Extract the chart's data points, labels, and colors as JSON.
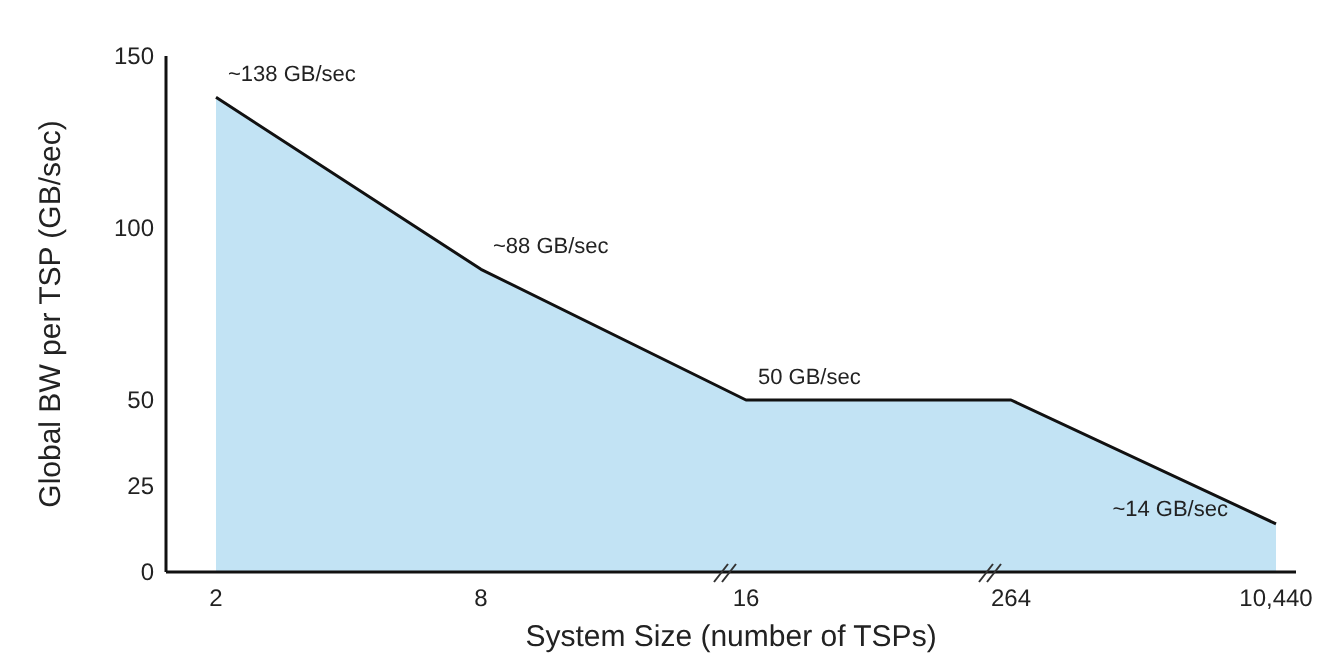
{
  "chart_data": {
    "type": "area",
    "xlabel": "System Size (number of TSPs)",
    "ylabel": "Global BW per TSP (GB/sec)",
    "categories": [
      "2",
      "8",
      "16",
      "264",
      "10,440"
    ],
    "values": [
      138,
      88,
      50,
      50,
      14
    ],
    "color": "#c2e3f4",
    "ylim": [
      0,
      150
    ],
    "yticks": [
      0,
      25,
      50,
      100,
      150
    ],
    "annotations": [
      {
        "text": "~138 GB/sec",
        "x": "2",
        "y": 138
      },
      {
        "text": "~88 GB/sec",
        "x": "8",
        "y": 88
      },
      {
        "text": "50 GB/sec",
        "x": "16",
        "y": 50
      },
      {
        "text": "~14 GB/sec",
        "x": "10,440",
        "y": 14
      }
    ]
  }
}
